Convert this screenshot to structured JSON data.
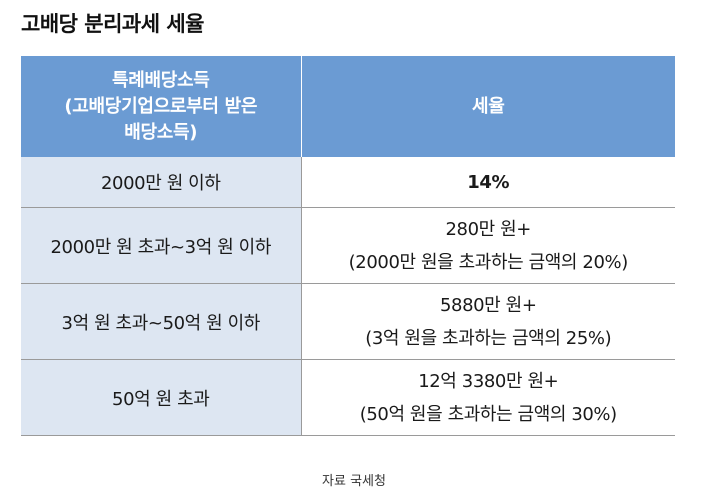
{
  "title": "고배당 분리과세 세율",
  "table": {
    "header": {
      "col1_lines": [
        "특례배당소득",
        "(고배당기업으로부터 받은",
        "배당소득)"
      ],
      "col2": "세율"
    },
    "rows": [
      {
        "income": "2000만 원 이하",
        "rate_lines": [
          "14%"
        ]
      },
      {
        "income": "2000만 원 초과~3억 원 이하",
        "rate_lines": [
          "280만 원+",
          "(2000만 원을 초과하는 금액의 20%)"
        ]
      },
      {
        "income": "3억 원 초과~50억 원 이하",
        "rate_lines": [
          "5880만 원+",
          "(3억 원을 초과하는 금액의 25%)"
        ]
      },
      {
        "income": "50억 원 초과",
        "rate_lines": [
          "12억 3380만 원+",
          "(50억 원을 초과하는 금액의 30%)"
        ]
      }
    ]
  },
  "source": "자료 국세청",
  "colors": {
    "header_bg": "#6b9bd3",
    "left_col_bg": "#dde6f2"
  }
}
